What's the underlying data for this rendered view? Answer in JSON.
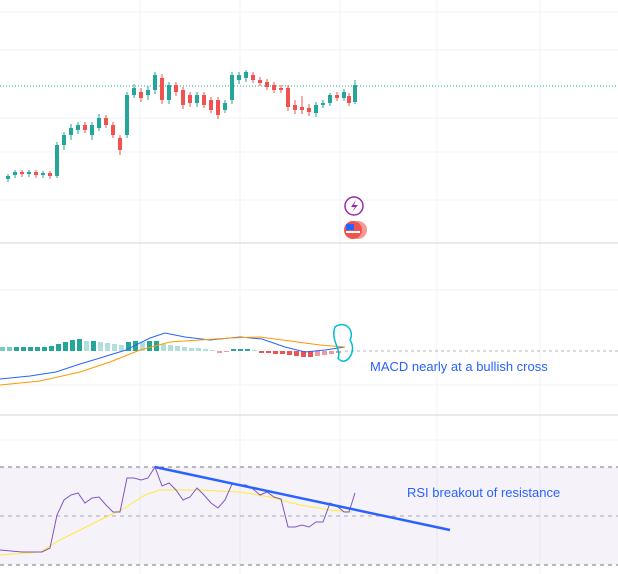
{
  "annotations": {
    "macd": "MACD nearly at a bullish cross",
    "rsi": "RSI breakout of resistance"
  }
}
